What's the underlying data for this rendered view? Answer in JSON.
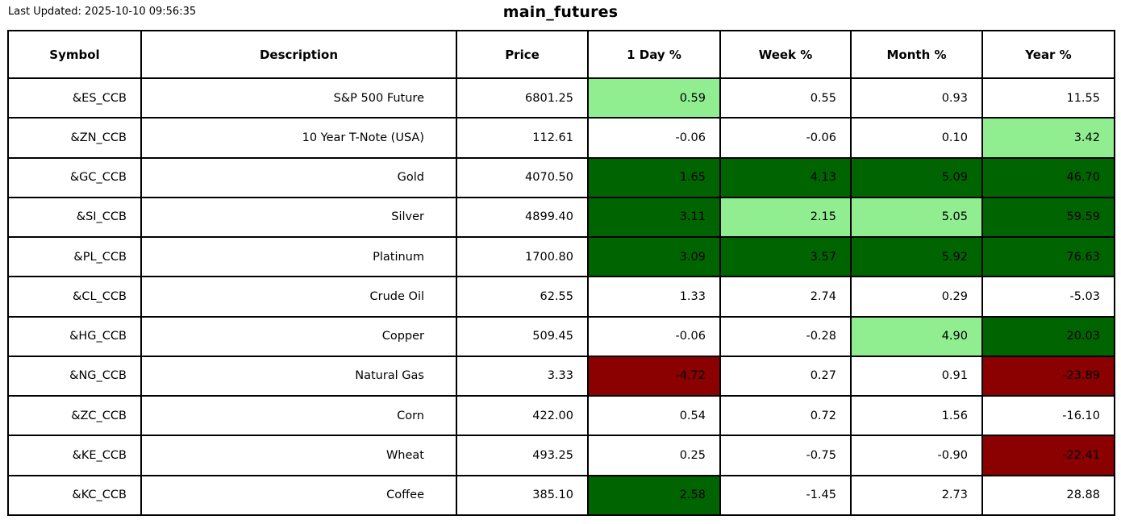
{
  "header": {
    "last_updated": "Last Updated: 2025-10-10 09:56:35",
    "title": "main_futures"
  },
  "colors": {
    "light_green": "#90EE90",
    "dark_green": "#006400",
    "dark_red": "#8B0000",
    "none": "#FFFFFF",
    "border": "#000000"
  },
  "table": {
    "columns": [
      "Symbol",
      "Description",
      "Price",
      "1 Day %",
      "Week %",
      "Month %",
      "Year %"
    ],
    "rows": [
      {
        "symbol": "&ES_CCB",
        "description": "S&P 500 Future",
        "price": "6801.25",
        "pcts": [
          {
            "value": "0.59",
            "bg": "light_green"
          },
          {
            "value": "0.55",
            "bg": "none"
          },
          {
            "value": "0.93",
            "bg": "none"
          },
          {
            "value": "11.55",
            "bg": "none"
          }
        ]
      },
      {
        "symbol": "&ZN_CCB",
        "description": "10 Year T-Note (USA)",
        "price": "112.61",
        "pcts": [
          {
            "value": "-0.06",
            "bg": "none"
          },
          {
            "value": "-0.06",
            "bg": "none"
          },
          {
            "value": "0.10",
            "bg": "none"
          },
          {
            "value": "3.42",
            "bg": "light_green"
          }
        ]
      },
      {
        "symbol": "&GC_CCB",
        "description": "Gold",
        "price": "4070.50",
        "pcts": [
          {
            "value": "1.65",
            "bg": "dark_green"
          },
          {
            "value": "4.13",
            "bg": "dark_green"
          },
          {
            "value": "5.09",
            "bg": "dark_green"
          },
          {
            "value": "46.70",
            "bg": "dark_green"
          }
        ]
      },
      {
        "symbol": "&SI_CCB",
        "description": "Silver",
        "price": "4899.40",
        "pcts": [
          {
            "value": "3.11",
            "bg": "dark_green"
          },
          {
            "value": "2.15",
            "bg": "light_green"
          },
          {
            "value": "5.05",
            "bg": "light_green"
          },
          {
            "value": "59.59",
            "bg": "dark_green"
          }
        ]
      },
      {
        "symbol": "&PL_CCB",
        "description": "Platinum",
        "price": "1700.80",
        "pcts": [
          {
            "value": "3.09",
            "bg": "dark_green"
          },
          {
            "value": "3.57",
            "bg": "dark_green"
          },
          {
            "value": "5.92",
            "bg": "dark_green"
          },
          {
            "value": "76.63",
            "bg": "dark_green"
          }
        ]
      },
      {
        "symbol": "&CL_CCB",
        "description": "Crude Oil",
        "price": "62.55",
        "pcts": [
          {
            "value": "1.33",
            "bg": "none"
          },
          {
            "value": "2.74",
            "bg": "none"
          },
          {
            "value": "0.29",
            "bg": "none"
          },
          {
            "value": "-5.03",
            "bg": "none"
          }
        ]
      },
      {
        "symbol": "&HG_CCB",
        "description": "Copper",
        "price": "509.45",
        "pcts": [
          {
            "value": "-0.06",
            "bg": "none"
          },
          {
            "value": "-0.28",
            "bg": "none"
          },
          {
            "value": "4.90",
            "bg": "light_green"
          },
          {
            "value": "20.03",
            "bg": "dark_green"
          }
        ]
      },
      {
        "symbol": "&NG_CCB",
        "description": "Natural Gas",
        "price": "3.33",
        "pcts": [
          {
            "value": "-4.72",
            "bg": "dark_red"
          },
          {
            "value": "0.27",
            "bg": "none"
          },
          {
            "value": "0.91",
            "bg": "none"
          },
          {
            "value": "-23.89",
            "bg": "dark_red"
          }
        ]
      },
      {
        "symbol": "&ZC_CCB",
        "description": "Corn",
        "price": "422.00",
        "pcts": [
          {
            "value": "0.54",
            "bg": "none"
          },
          {
            "value": "0.72",
            "bg": "none"
          },
          {
            "value": "1.56",
            "bg": "none"
          },
          {
            "value": "-16.10",
            "bg": "none"
          }
        ]
      },
      {
        "symbol": "&KE_CCB",
        "description": "Wheat",
        "price": "493.25",
        "pcts": [
          {
            "value": "0.25",
            "bg": "none"
          },
          {
            "value": "-0.75",
            "bg": "none"
          },
          {
            "value": "-0.90",
            "bg": "none"
          },
          {
            "value": "-22.41",
            "bg": "dark_red"
          }
        ]
      },
      {
        "symbol": "&KC_CCB",
        "description": "Coffee",
        "price": "385.10",
        "pcts": [
          {
            "value": "2.58",
            "bg": "dark_green"
          },
          {
            "value": "-1.45",
            "bg": "none"
          },
          {
            "value": "2.73",
            "bg": "none"
          },
          {
            "value": "28.88",
            "bg": "none"
          }
        ]
      }
    ]
  },
  "chart_data": {
    "type": "table",
    "title": "main_futures",
    "subtitle": "Last Updated: 2025-10-10 09:56:35",
    "columns": [
      "Symbol",
      "Description",
      "Price",
      "1 Day %",
      "Week %",
      "Month %",
      "Year %"
    ],
    "rows": [
      [
        "&ES_CCB",
        "S&P 500 Future",
        6801.25,
        0.59,
        0.55,
        0.93,
        11.55
      ],
      [
        "&ZN_CCB",
        "10 Year T-Note (USA)",
        112.61,
        -0.06,
        -0.06,
        0.1,
        3.42
      ],
      [
        "&GC_CCB",
        "Gold",
        4070.5,
        1.65,
        4.13,
        5.09,
        46.7
      ],
      [
        "&SI_CCB",
        "Silver",
        4899.4,
        3.11,
        2.15,
        5.05,
        59.59
      ],
      [
        "&PL_CCB",
        "Platinum",
        1700.8,
        3.09,
        3.57,
        5.92,
        76.63
      ],
      [
        "&CL_CCB",
        "Crude Oil",
        62.55,
        1.33,
        2.74,
        0.29,
        -5.03
      ],
      [
        "&HG_CCB",
        "Copper",
        509.45,
        -0.06,
        -0.28,
        4.9,
        20.03
      ],
      [
        "&NG_CCB",
        "Natural Gas",
        3.33,
        -4.72,
        0.27,
        0.91,
        -23.89
      ],
      [
        "&ZC_CCB",
        "Corn",
        422.0,
        0.54,
        0.72,
        1.56,
        -16.1
      ],
      [
        "&KE_CCB",
        "Wheat",
        493.25,
        0.25,
        -0.75,
        -0.9,
        -22.41
      ],
      [
        "&KC_CCB",
        "Coffee",
        385.1,
        2.58,
        -1.45,
        2.73,
        28.88
      ]
    ],
    "highlight_legend": {
      "light_green_#90EE90": "moderate gain highlight",
      "dark_green_#006400": "strong gain highlight",
      "dark_red_#8B0000": "strong loss highlight",
      "white": "no highlight"
    }
  }
}
